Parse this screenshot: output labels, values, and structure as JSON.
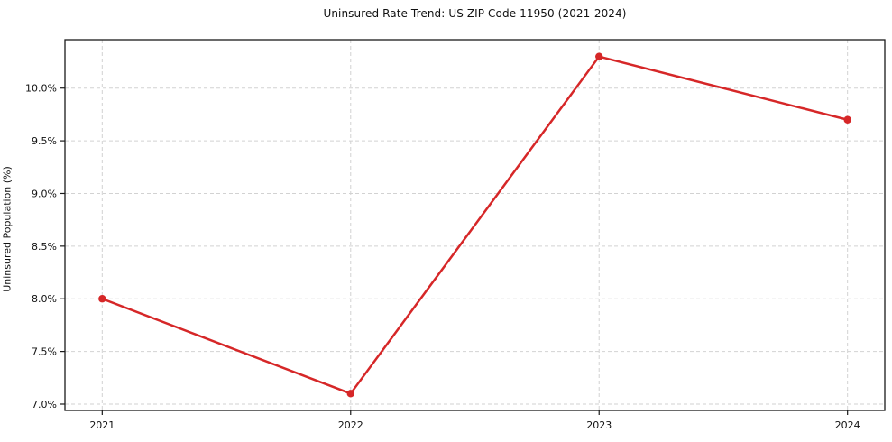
{
  "chart_data": {
    "type": "line",
    "title": "Uninsured Rate Trend: US ZIP Code 11950 (2021-2024)",
    "xlabel": "",
    "ylabel": "Uninsured Population (%)",
    "x": [
      2021,
      2022,
      2023,
      2024
    ],
    "x_tick_labels": [
      "2021",
      "2022",
      "2023",
      "2024"
    ],
    "values": [
      8.0,
      7.1,
      10.3,
      9.7
    ],
    "ytick_values": [
      7.0,
      7.5,
      8.0,
      8.5,
      9.0,
      9.5,
      10.0
    ],
    "ytick_labels": [
      "7.0%",
      "7.5%",
      "8.0%",
      "8.5%",
      "9.0%",
      "9.5%",
      "10.0%"
    ],
    "xlim": [
      2020.85,
      2024.15
    ],
    "ylim": [
      6.94,
      10.46
    ],
    "grid": true,
    "grid_style": "dashed",
    "legend": "none",
    "colors": {
      "line": "#d62728",
      "marker": "#d62728",
      "grid": "#d2d2d2",
      "axis": "#1a1a1a",
      "text": "#111111",
      "background": "#ffffff"
    }
  }
}
